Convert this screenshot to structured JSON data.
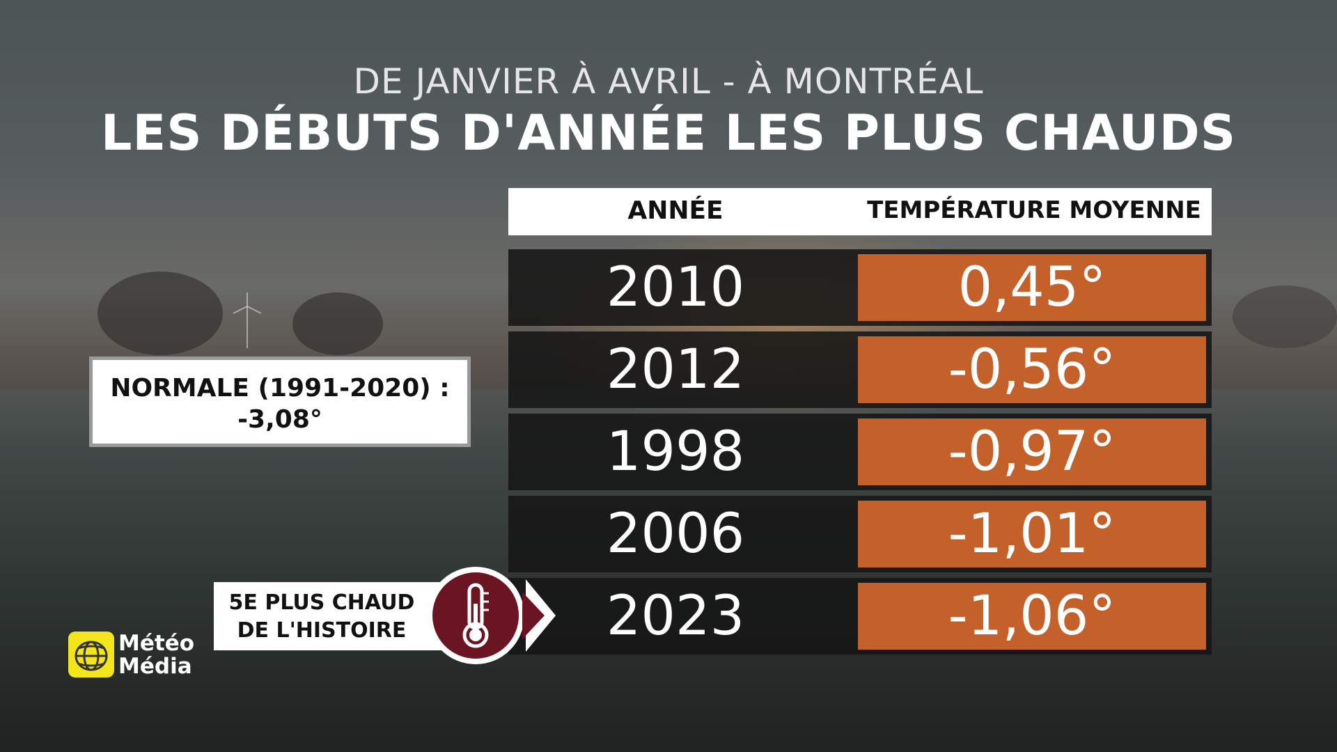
{
  "subtitle": "DE JANVIER À AVRIL - À MONTRÉAL",
  "title": "LES DÉBUTS D'ANNÉE LES PLUS CHAUDS",
  "table": {
    "headers": [
      "ANNÉE",
      "TEMPÉRATURE MOYENNE"
    ],
    "rows": [
      {
        "year": "2010",
        "temp": "0,45°"
      },
      {
        "year": "2012",
        "temp": "-0,56°"
      },
      {
        "year": "1998",
        "temp": "-0,97°"
      },
      {
        "year": "2006",
        "temp": "-1,01°"
      },
      {
        "year": "2023",
        "temp": "-1,06°"
      }
    ]
  },
  "normal": {
    "label": "NORMALE (1991-2020) :",
    "value": "-3,08°"
  },
  "rank": {
    "line1": "5E PLUS CHAUD",
    "line2": "DE L'HISTOIRE"
  },
  "badge_icon": "thermometer-icon",
  "logo": {
    "line1": "Météo",
    "line2": "Média"
  },
  "colors": {
    "accent": "#c4612a",
    "badge": "#6b1522",
    "logo": "#f3e51c"
  }
}
